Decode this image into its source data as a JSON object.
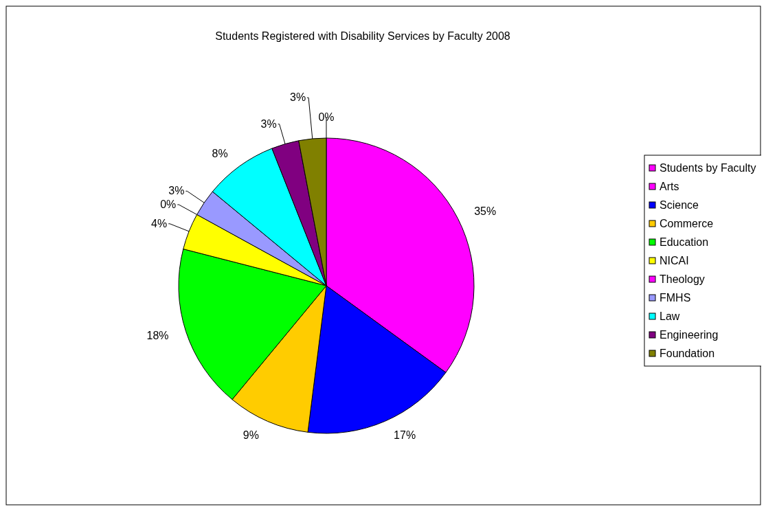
{
  "chart_data": {
    "type": "pie",
    "title": "Students Registered with Disability Services by Faculty 2008",
    "categories": [
      "Students by Faculty",
      "Arts",
      "Science",
      "Commerce",
      "Education",
      "NICAI",
      "Theology",
      "FMHS",
      "Law",
      "Engineering",
      "Foundation"
    ],
    "values": [
      0,
      35,
      17,
      9,
      18,
      4,
      0,
      3,
      8,
      3,
      3
    ],
    "value_labels": [
      "0%",
      "35%",
      "17%",
      "9%",
      "18%",
      "4%",
      "0%",
      "3%",
      "8%",
      "3%",
      "3%"
    ],
    "colors": [
      "#ff00ff",
      "#ff00ff",
      "#0000ff",
      "#ffcc00",
      "#00ff00",
      "#ffff00",
      "#ff00ff",
      "#9999ff",
      "#00ffff",
      "#800080",
      "#808000"
    ],
    "legend": "right"
  }
}
